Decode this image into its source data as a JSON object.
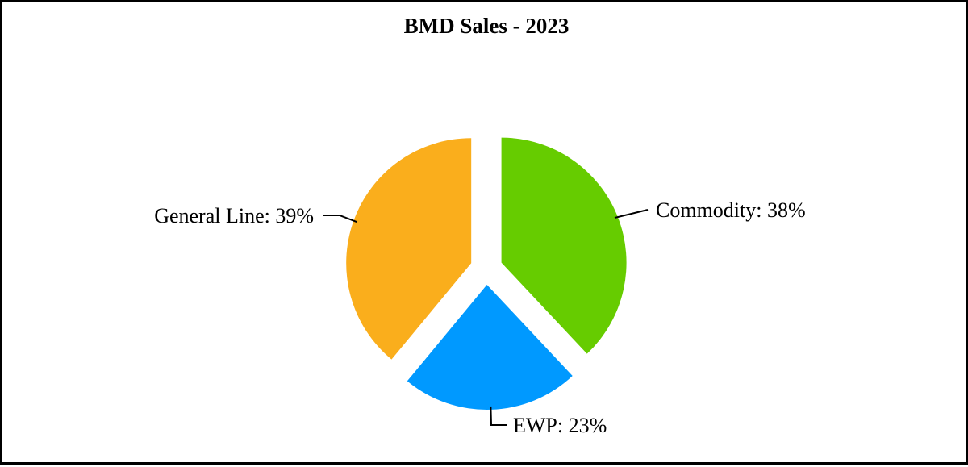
{
  "chart_data": {
    "type": "pie",
    "title": "BMD Sales - 2023",
    "slices": [
      {
        "label": "Commodity",
        "value": 38,
        "display": "Commodity: 38%",
        "color": "#66cc00"
      },
      {
        "label": "EWP",
        "value": 23,
        "display": "EWP: 23%",
        "color": "#0099ff"
      },
      {
        "label": "General Line",
        "value": 39,
        "display": "General Line: 39%",
        "color": "#faae1c"
      }
    ],
    "start_angle_deg": 0,
    "direction": "clockwise",
    "exploded": true,
    "legend": "none"
  }
}
